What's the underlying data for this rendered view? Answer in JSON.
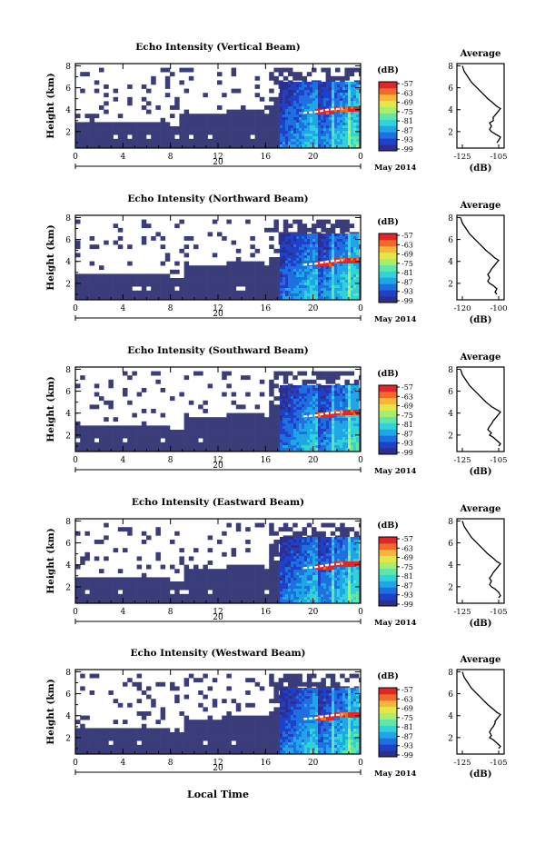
{
  "figure": {
    "x_axis_title": "Local Time",
    "date_label": "May 2014"
  },
  "chart_data": [
    {
      "type": "heatmap",
      "title": "Echo Intensity (Vertical Beam)",
      "ylabel": "Height (km)",
      "xticks": [
        "0",
        "4",
        "8",
        "12",
        "16",
        "20",
        "0"
      ],
      "day_label": "20",
      "yticks": [
        "2",
        "4",
        "6",
        "8"
      ],
      "ylim": [
        0.5,
        8.2
      ],
      "xlim": [
        0,
        24
      ],
      "colorbar": {
        "unit": "(dB)",
        "ticks": [
          "-57",
          "-63",
          "-69",
          "-75",
          "-81",
          "-87",
          "-93",
          "-99"
        ],
        "range": [
          -99,
          -57
        ]
      },
      "average": {
        "title": "Average",
        "xlabel": "(dB)",
        "xticks": [
          "-125",
          "-105"
        ],
        "yticks": [
          "2",
          "4",
          "6",
          "8"
        ],
        "profile": {
          "height": [
            1.0,
            1.2,
            1.5,
            1.8,
            2.0,
            2.2,
            2.5,
            2.8,
            3.0,
            3.3,
            3.5,
            3.7,
            3.9,
            4.1,
            4.3,
            4.6,
            5.0,
            5.5,
            6.0,
            6.5,
            7.0,
            7.5,
            8.0
          ],
          "db": [
            -106,
            -105,
            -104,
            -107,
            -109,
            -110,
            -109,
            -110,
            -108,
            -108,
            -107,
            -106,
            -105,
            -104,
            -106,
            -108,
            -111,
            -114,
            -117,
            -120,
            -122,
            -124,
            -125
          ]
        }
      }
    },
    {
      "type": "heatmap",
      "title": "Echo Intensity (Northward Beam)",
      "ylabel": "Height (km)",
      "xticks": [
        "0",
        "4",
        "8",
        "12",
        "16",
        "20",
        "0"
      ],
      "day_label": "20",
      "yticks": [
        "2",
        "4",
        "6",
        "8"
      ],
      "ylim": [
        0.5,
        8.2
      ],
      "xlim": [
        0,
        24
      ],
      "colorbar": {
        "unit": "(dB)",
        "ticks": [
          "-57",
          "-63",
          "-69",
          "-75",
          "-81",
          "-87",
          "-93",
          "-99"
        ],
        "range": [
          -99,
          -57
        ]
      },
      "average": {
        "title": "Average",
        "xlabel": "(dB)",
        "xticks": [
          "-120",
          "-100"
        ],
        "yticks": [
          "2",
          "4",
          "6",
          "8"
        ],
        "profile": {
          "height": [
            1.0,
            1.2,
            1.5,
            1.8,
            2.0,
            2.2,
            2.5,
            2.8,
            3.0,
            3.3,
            3.5,
            3.7,
            3.9,
            4.1,
            4.3,
            4.6,
            5.0,
            5.5,
            6.0,
            6.5,
            7.0,
            7.5,
            8.0
          ],
          "db": [
            -101,
            -102,
            -101,
            -103,
            -105,
            -106,
            -105,
            -106,
            -105,
            -104,
            -103,
            -102,
            -101,
            -100,
            -102,
            -104,
            -107,
            -110,
            -113,
            -116,
            -118,
            -120,
            -121
          ]
        }
      }
    },
    {
      "type": "heatmap",
      "title": "Echo Intensity (Southward Beam)",
      "ylabel": "Height (km)",
      "xticks": [
        "0",
        "4",
        "8",
        "12",
        "16",
        "20",
        "0"
      ],
      "day_label": "20",
      "yticks": [
        "2",
        "4",
        "6",
        "8"
      ],
      "ylim": [
        0.5,
        8.2
      ],
      "xlim": [
        0,
        24
      ],
      "colorbar": {
        "unit": "(dB)",
        "ticks": [
          "-57",
          "-63",
          "-69",
          "-75",
          "-81",
          "-87",
          "-93",
          "-99"
        ],
        "range": [
          -99,
          -57
        ]
      },
      "average": {
        "title": "Average",
        "xlabel": "(dB)",
        "xticks": [
          "-125",
          "-105"
        ],
        "yticks": [
          "2",
          "4",
          "6",
          "8"
        ],
        "profile": {
          "height": [
            1.0,
            1.2,
            1.5,
            1.8,
            2.0,
            2.2,
            2.5,
            2.8,
            3.0,
            3.3,
            3.5,
            3.7,
            3.9,
            4.1,
            4.3,
            4.6,
            5.0,
            5.5,
            6.0,
            6.5,
            7.0,
            7.5,
            8.0
          ],
          "db": [
            -105,
            -104,
            -106,
            -108,
            -110,
            -109,
            -111,
            -110,
            -109,
            -108,
            -107,
            -106,
            -105,
            -104,
            -106,
            -109,
            -112,
            -115,
            -118,
            -121,
            -123,
            -125,
            -126
          ]
        }
      }
    },
    {
      "type": "heatmap",
      "title": "Echo Intensity (Eastward Beam)",
      "ylabel": "Height (km)",
      "xticks": [
        "0",
        "4",
        "8",
        "12",
        "16",
        "20",
        "0"
      ],
      "day_label": "20",
      "yticks": [
        "2",
        "4",
        "6",
        "8"
      ],
      "ylim": [
        0.5,
        8.2
      ],
      "xlim": [
        0,
        24
      ],
      "colorbar": {
        "unit": "(dB)",
        "ticks": [
          "-57",
          "-63",
          "-69",
          "-75",
          "-81",
          "-87",
          "-93",
          "-99"
        ],
        "range": [
          -99,
          -57
        ]
      },
      "average": {
        "title": "Average",
        "xlabel": "(dB)",
        "xticks": [
          "-125",
          "-105"
        ],
        "yticks": [
          "2",
          "4",
          "6",
          "8"
        ],
        "profile": {
          "height": [
            1.0,
            1.2,
            1.5,
            1.8,
            2.0,
            2.2,
            2.5,
            2.8,
            3.0,
            3.3,
            3.5,
            3.7,
            3.9,
            4.1,
            4.3,
            4.6,
            5.0,
            5.5,
            6.0,
            6.5,
            7.0,
            7.5,
            8.0
          ],
          "db": [
            -105,
            -104,
            -105,
            -107,
            -109,
            -110,
            -109,
            -110,
            -109,
            -108,
            -107,
            -106,
            -105,
            -104,
            -106,
            -108,
            -111,
            -114,
            -117,
            -120,
            -122,
            -124,
            -125
          ]
        }
      }
    },
    {
      "type": "heatmap",
      "title": "Echo Intensity (Westward Beam)",
      "ylabel": "Height (km)",
      "xticks": [
        "0",
        "4",
        "8",
        "12",
        "16",
        "20",
        "0"
      ],
      "day_label": "20",
      "yticks": [
        "2",
        "4",
        "6",
        "8"
      ],
      "ylim": [
        0.5,
        8.2
      ],
      "xlim": [
        0,
        24
      ],
      "colorbar": {
        "unit": "(dB)",
        "ticks": [
          "-57",
          "-63",
          "-69",
          "-75",
          "-81",
          "-87",
          "-93",
          "-99"
        ],
        "range": [
          -99,
          -57
        ]
      },
      "average": {
        "title": "Average",
        "xlabel": "(dB)",
        "xticks": [
          "-125",
          "-105"
        ],
        "yticks": [
          "2",
          "4",
          "6",
          "8"
        ],
        "profile": {
          "height": [
            1.0,
            1.2,
            1.5,
            1.8,
            2.0,
            2.2,
            2.5,
            2.8,
            3.0,
            3.3,
            3.5,
            3.7,
            3.9,
            4.1,
            4.3,
            4.6,
            5.0,
            5.5,
            6.0,
            6.5,
            7.0,
            7.5,
            8.0
          ],
          "db": [
            -105,
            -104,
            -106,
            -108,
            -110,
            -109,
            -110,
            -109,
            -108,
            -107,
            -107,
            -106,
            -105,
            -104,
            -106,
            -108,
            -111,
            -114,
            -117,
            -120,
            -122,
            -124,
            -125
          ]
        }
      }
    }
  ],
  "colors": {
    "background_echo": "#3b3d7a",
    "colormap": [
      "#2b2f8f",
      "#2140c8",
      "#1e6fe0",
      "#1fa6e6",
      "#2fd3d8",
      "#5fe6a8",
      "#a8ee6a",
      "#e6e64a",
      "#f6b63a",
      "#f26a2a",
      "#e0262a"
    ]
  }
}
